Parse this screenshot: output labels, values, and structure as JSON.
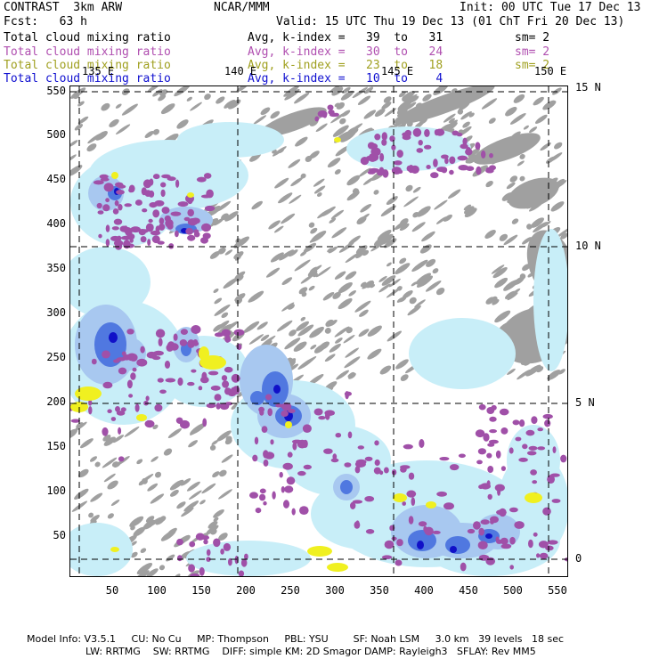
{
  "header": {
    "title": "CONTRAST  3km ARW",
    "org": "NCAR/MMM",
    "init": "Init: 00 UTC Tue 17 Dec 13",
    "fcst": "Fcst:   63 h",
    "valid": "Valid: 15 UTC Thu 19 Dec 13 (01 ChT Fri 20 Dec 13)"
  },
  "fields": [
    {
      "name": "Total cloud mixing ratio",
      "stat": "Avg, k-index =   39  to   31",
      "sm": "sm= 2",
      "color": "#000000"
    },
    {
      "name": "Total cloud mixing ratio",
      "stat": "Avg, k-index =   30  to   24",
      "sm": "sm= 2",
      "color": "#b04fb0"
    },
    {
      "name": "Total cloud mixing ratio",
      "stat": "Avg, k-index =   23  to   18",
      "sm": "sm= 2",
      "color": "#a0a020"
    },
    {
      "name": "Total cloud mixing ratio",
      "stat": "Avg, k-index =   10  to    4",
      "sm": "",
      "color": "#1010d0"
    }
  ],
  "axes": {
    "y_ticks": [
      "550",
      "500",
      "450",
      "400",
      "350",
      "300",
      "250",
      "200",
      "150",
      "100",
      "50"
    ],
    "x_ticks": [
      "50",
      "100",
      "150",
      "200",
      "250",
      "300",
      "350",
      "400",
      "450",
      "500",
      "550"
    ],
    "lat_labels": [
      "15 N",
      "10 N",
      "5 N",
      "0"
    ],
    "lon_labels": [
      "135 E",
      "140 E",
      "145 E",
      "150 E"
    ]
  },
  "colors": {
    "gray": "#a0a0a0",
    "light_cyan": "#c8eef8",
    "light_blue": "#a8c8f0",
    "blue": "#5078e0",
    "dark_blue": "#1010c8",
    "magenta": "#a050a8",
    "yellow": "#f0f020"
  },
  "footer": {
    "line1": "Model Info: V3.5.1     CU: No Cu     MP: Thompson     PBL: YSU        SF: Noah LSM     3.0 km   39 levels   18 sec",
    "line2": "LW: RRTMG    SW: RRTMG    DIFF: simple KM: 2D Smagor DAMP: Rayleigh3   SFLAY: Rev MM5"
  }
}
